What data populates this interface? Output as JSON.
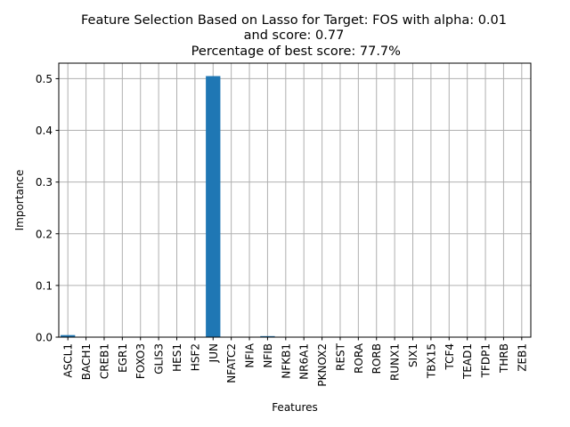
{
  "chart_data": {
    "type": "bar",
    "title_lines": [
      "Feature Selection Based on Lasso for Target: FOS with alpha: 0.01",
      "and score: 0.77",
      " Percentage of best score: 77.7%"
    ],
    "xlabel": "Features",
    "ylabel": "Importance",
    "categories": [
      "ASCL1",
      "BACH1",
      "CREB1",
      "EGR1",
      "FOXO3",
      "GLIS3",
      "HES1",
      "HSF2",
      "JUN",
      "NFATC2",
      "NFIA",
      "NFIB",
      "NFKB1",
      "NR6A1",
      "PKNOX2",
      "REST",
      "RORA",
      "RORB",
      "RUNX1",
      "SIX1",
      "TBX15",
      "TCF4",
      "TEAD1",
      "TFDP1",
      "THRB",
      "ZEB1"
    ],
    "values": [
      0.004,
      0.0,
      0.0,
      0.0,
      0.0,
      0.0,
      0.0,
      0.0,
      0.505,
      0.0,
      0.0,
      0.002,
      0.0,
      0.0,
      0.0,
      0.0,
      0.0,
      0.0,
      0.0,
      0.0,
      0.0,
      0.0,
      0.0,
      0.0,
      0.0,
      0.0
    ],
    "ylim": [
      0,
      0.53
    ],
    "yticks": [
      0.0,
      0.1,
      0.2,
      0.3,
      0.4,
      0.5
    ],
    "ytick_labels": [
      "0.0",
      "0.1",
      "0.2",
      "0.3",
      "0.4",
      "0.5"
    ],
    "grid": true,
    "bar_color": "#1f77b4",
    "grid_color": "#b0b0b0"
  }
}
